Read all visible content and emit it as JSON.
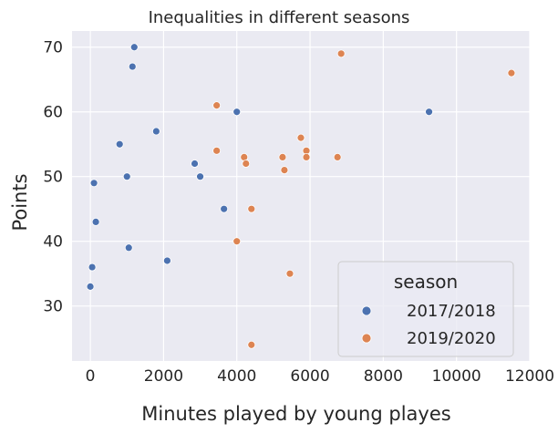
{
  "chart_data": {
    "type": "scatter",
    "title": "Inequalities in different seasons",
    "xlabel": "Minutes played by young playes",
    "ylabel": "Points",
    "xlim": [
      -500,
      12000
    ],
    "ylim": [
      21.5,
      72.5
    ],
    "xticks": [
      0,
      2000,
      4000,
      6000,
      8000,
      10000,
      12000
    ],
    "yticks": [
      30,
      40,
      50,
      60,
      70
    ],
    "xtick_labels": [
      "0",
      "2000",
      "4000",
      "6000",
      "8000",
      "10000",
      "12000"
    ],
    "ytick_labels": [
      "30",
      "40",
      "50",
      "60",
      "70"
    ],
    "grid": true,
    "legend": {
      "title": "season",
      "position": "lower-right"
    },
    "series": [
      {
        "name": "2017/2018",
        "color": "#4c72b0",
        "points": [
          [
            1200,
            70
          ],
          [
            1150,
            67
          ],
          [
            4000,
            60
          ],
          [
            9250,
            60
          ],
          [
            1800,
            57
          ],
          [
            800,
            55
          ],
          [
            2850,
            52
          ],
          [
            1000,
            50
          ],
          [
            3000,
            50
          ],
          [
            100,
            49
          ],
          [
            3650,
            45
          ],
          [
            150,
            43
          ],
          [
            1050,
            39
          ],
          [
            2100,
            37
          ],
          [
            50,
            36
          ],
          [
            0,
            33
          ]
        ]
      },
      {
        "name": "2019/2020",
        "color": "#dd8452",
        "points": [
          [
            6850,
            69
          ],
          [
            11500,
            66
          ],
          [
            3450,
            61
          ],
          [
            5750,
            56
          ],
          [
            3450,
            54
          ],
          [
            5900,
            54
          ],
          [
            4200,
            53
          ],
          [
            5250,
            53
          ],
          [
            5900,
            53
          ],
          [
            6750,
            53
          ],
          [
            4250,
            52
          ],
          [
            5300,
            51
          ],
          [
            4400,
            45
          ],
          [
            4000,
            40
          ],
          [
            5450,
            35
          ],
          [
            4400,
            24
          ]
        ]
      }
    ]
  }
}
